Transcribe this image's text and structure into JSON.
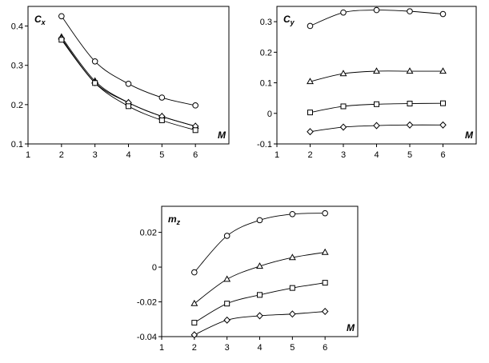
{
  "chart_data": [
    {
      "type": "line",
      "ylabel": "Cx",
      "xlabel": "M",
      "xlim": [
        1,
        7
      ],
      "ylim": [
        0.1,
        0.45
      ],
      "xticks": [
        "1",
        "2",
        "3",
        "4",
        "5",
        "6"
      ],
      "yticks": [
        "0.1",
        "0.2",
        "0.3",
        "0.4"
      ],
      "grid": false,
      "x": [
        2,
        3,
        4,
        5,
        6
      ],
      "series": [
        {
          "marker": "circle",
          "values": [
            0.425,
            0.31,
            0.253,
            0.218,
            0.198
          ]
        },
        {
          "marker": "triangle",
          "values": [
            0.372,
            0.26,
            0.205,
            0.17,
            0.145
          ]
        },
        {
          "marker": "diamond",
          "values": [
            0.368,
            0.256,
            0.205,
            0.17,
            0.145
          ]
        },
        {
          "marker": "square",
          "values": [
            0.365,
            0.255,
            0.196,
            0.16,
            0.135
          ]
        }
      ]
    },
    {
      "type": "line",
      "ylabel": "Cy",
      "xlabel": "M",
      "xlim": [
        1,
        7
      ],
      "ylim": [
        -0.1,
        0.35
      ],
      "xticks": [
        "1",
        "2",
        "3",
        "4",
        "5",
        "6"
      ],
      "yticks": [
        "-0.1",
        "0",
        "0.1",
        "0.2",
        "0.3"
      ],
      "grid": false,
      "x": [
        2,
        3,
        4,
        5,
        6
      ],
      "series": [
        {
          "marker": "circle",
          "values": [
            0.286,
            0.33,
            0.338,
            0.334,
            0.325
          ]
        },
        {
          "marker": "triangle",
          "values": [
            0.104,
            0.13,
            0.138,
            0.138,
            0.138
          ]
        },
        {
          "marker": "square",
          "values": [
            0.003,
            0.023,
            0.03,
            0.032,
            0.033
          ]
        },
        {
          "marker": "diamond",
          "values": [
            -0.06,
            -0.045,
            -0.04,
            -0.038,
            -0.038
          ]
        }
      ]
    },
    {
      "type": "line",
      "ylabel": "mz",
      "xlabel": "M",
      "xlim": [
        1,
        7
      ],
      "ylim": [
        -0.04,
        0.035
      ],
      "xticks": [
        "1",
        "2",
        "3",
        "4",
        "5",
        "6"
      ],
      "yticks": [
        "-0.04",
        "-0.02",
        "0",
        "0.02"
      ],
      "grid": false,
      "x": [
        2,
        3,
        4,
        5,
        6
      ],
      "series": [
        {
          "marker": "circle",
          "values": [
            -0.003,
            0.018,
            0.027,
            0.0305,
            0.031
          ]
        },
        {
          "marker": "triangle",
          "values": [
            -0.021,
            -0.007,
            0.0005,
            0.0055,
            0.0085
          ]
        },
        {
          "marker": "square",
          "values": [
            -0.032,
            -0.021,
            -0.016,
            -0.012,
            -0.009
          ]
        },
        {
          "marker": "diamond",
          "values": [
            -0.039,
            -0.0305,
            -0.028,
            -0.027,
            -0.0255
          ]
        }
      ]
    }
  ]
}
